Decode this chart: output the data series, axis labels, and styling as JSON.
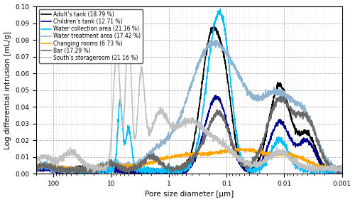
{
  "xlabel": "Pore size diameter [μm]",
  "ylabel": "Log differential intrusion [mL/g]",
  "xlim": [
    200,
    0.001
  ],
  "ylim": [
    0.0,
    0.1
  ],
  "yticks": [
    0.0,
    0.01,
    0.02,
    0.03,
    0.04,
    0.05,
    0.06,
    0.07,
    0.08,
    0.09,
    0.1
  ],
  "legend_entries": [
    "Adult’s tank (18.79 %)",
    "Children’s tank (12.71 %)",
    "Water collection area (21.16 %)",
    "Water treatment area (17.42 %)",
    "Changing rooms (6.73 %)",
    "Bar (17.29 %)",
    "South’s storageroom (21.16 %)"
  ],
  "line_colors": [
    "#000000",
    "#00008B",
    "#00BFFF",
    "#8FB4D0",
    "#FFA500",
    "#696969",
    "#C0C0C0"
  ],
  "line_widths": [
    1.2,
    1.2,
    1.2,
    1.2,
    1.2,
    1.2,
    1.2
  ],
  "background_color": "#ffffff",
  "figsize": [
    5.0,
    2.84
  ],
  "dpi": 100
}
